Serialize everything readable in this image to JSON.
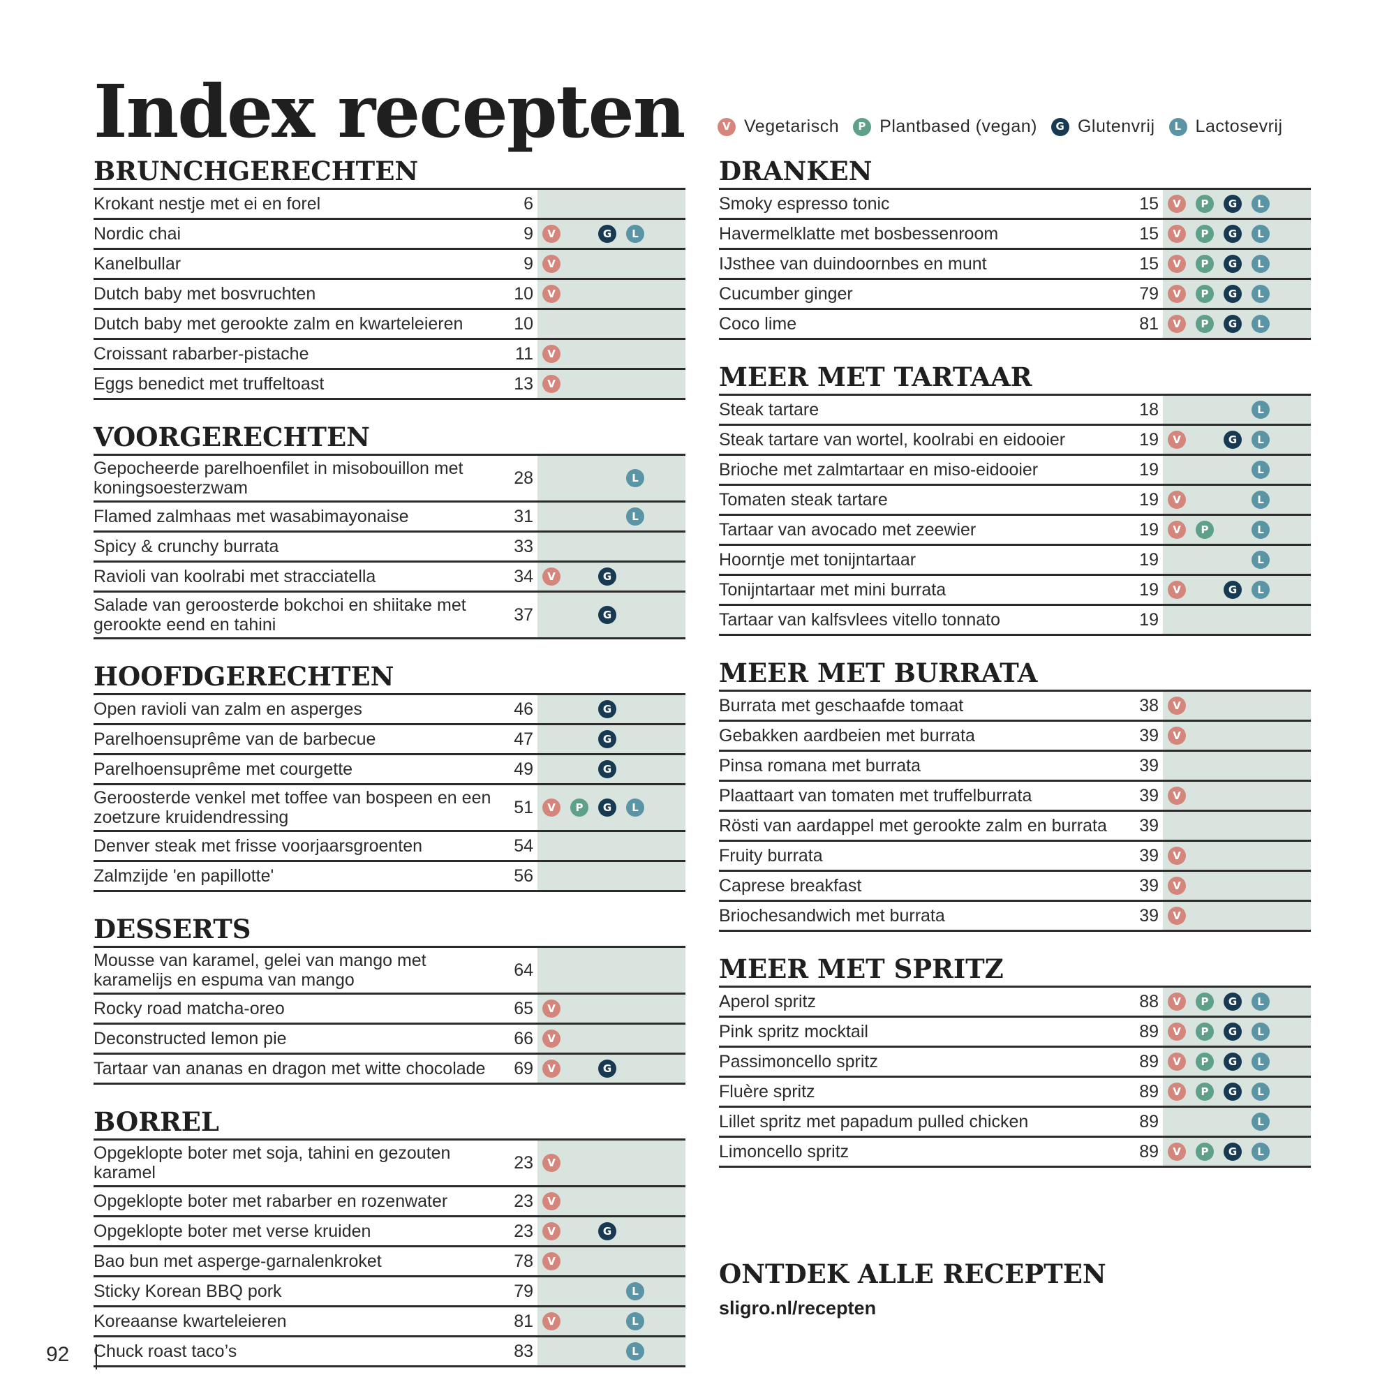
{
  "title": "Index recepten",
  "colors": {
    "V": "#d4867c",
    "P": "#5ea08a",
    "G": "#173a52",
    "L": "#5a94a5",
    "badge_bg": "#d8e4dd"
  },
  "legend": [
    {
      "code": "V",
      "label": "Vegetarisch"
    },
    {
      "code": "P",
      "label": "Plantbased (vegan)"
    },
    {
      "code": "G",
      "label": "Glutenvrij"
    },
    {
      "code": "L",
      "label": "Lactosevrij"
    }
  ],
  "sections_left": [
    {
      "title": "BRUNCHGERECHTEN",
      "items": [
        {
          "name": "Krokant nestje met ei en forel",
          "page": "6",
          "tags": []
        },
        {
          "name": "Nordic chai",
          "page": "9",
          "tags": [
            "V",
            "G",
            "L"
          ]
        },
        {
          "name": "Kanelbullar",
          "page": "9",
          "tags": [
            "V"
          ]
        },
        {
          "name": "Dutch baby met bosvruchten",
          "page": "10",
          "tags": [
            "V"
          ]
        },
        {
          "name": "Dutch baby met gerookte zalm en kwarteleieren",
          "page": "10",
          "tags": []
        },
        {
          "name": "Croissant rabarber-pistache",
          "page": "11",
          "tags": [
            "V"
          ]
        },
        {
          "name": "Eggs benedict met truffeltoast",
          "page": "13",
          "tags": [
            "V"
          ]
        }
      ]
    },
    {
      "title": "VOORGERECHTEN",
      "items": [
        {
          "name": "Gepocheerde parelhoenfilet in misobouillon met koningsoesterzwam",
          "page": "28",
          "tags": [
            "L"
          ]
        },
        {
          "name": "Flamed zalmhaas met wasabimayonaise",
          "page": "31",
          "tags": [
            "L"
          ]
        },
        {
          "name": "Spicy & crunchy burrata",
          "page": "33",
          "tags": []
        },
        {
          "name": "Ravioli van koolrabi met stracciatella",
          "page": "34",
          "tags": [
            "V",
            "G"
          ]
        },
        {
          "name": "Salade van geroosterde bokchoi en shiitake met gerookte eend en tahini",
          "page": "37",
          "tags": [
            "G"
          ]
        }
      ]
    },
    {
      "title": "HOOFDGERECHTEN",
      "items": [
        {
          "name": "Open ravioli van zalm en asperges",
          "page": "46",
          "tags": [
            "G"
          ]
        },
        {
          "name": "Parelhoensuprême van de barbecue",
          "page": "47",
          "tags": [
            "G"
          ]
        },
        {
          "name": "Parelhoensuprême met courgette",
          "page": "49",
          "tags": [
            "G"
          ]
        },
        {
          "name": "Geroosterde venkel met toffee van bospeen en een zoetzure kruidendressing",
          "page": "51",
          "tags": [
            "V",
            "P",
            "G",
            "L"
          ]
        },
        {
          "name": "Denver steak met frisse voorjaarsgroenten",
          "page": "54",
          "tags": []
        },
        {
          "name": "Zalmzijde 'en papillotte'",
          "page": "56",
          "tags": []
        }
      ]
    },
    {
      "title": "DESSERTS",
      "items": [
        {
          "name": "Mousse van karamel, gelei van mango met karamelijs en espuma van mango",
          "page": "64",
          "tags": []
        },
        {
          "name": "Rocky road matcha-oreo",
          "page": "65",
          "tags": [
            "V"
          ]
        },
        {
          "name": "Deconstructed lemon pie",
          "page": "66",
          "tags": [
            "V"
          ]
        },
        {
          "name": "Tartaar van ananas en dragon met witte chocolade",
          "page": "69",
          "tags": [
            "V",
            "G"
          ]
        }
      ]
    },
    {
      "title": "BORREL",
      "items": [
        {
          "name": "Opgeklopte boter met soja, tahini en gezouten karamel",
          "page": "23",
          "tags": [
            "V"
          ]
        },
        {
          "name": "Opgeklopte boter met rabarber en rozenwater",
          "page": "23",
          "tags": [
            "V"
          ]
        },
        {
          "name": "Opgeklopte boter met verse kruiden",
          "page": "23",
          "tags": [
            "V",
            "G"
          ]
        },
        {
          "name": "Bao bun met asperge-garnalenkroket",
          "page": "78",
          "tags": [
            "V"
          ]
        },
        {
          "name": "Sticky Korean BBQ pork",
          "page": "79",
          "tags": [
            "L"
          ]
        },
        {
          "name": "Koreaanse kwarteleieren",
          "page": "81",
          "tags": [
            "V",
            "L"
          ]
        },
        {
          "name": "Chuck roast taco’s",
          "page": "83",
          "tags": [
            "L"
          ]
        }
      ]
    }
  ],
  "sections_right": [
    {
      "title": "DRANKEN",
      "items": [
        {
          "name": "Smoky espresso tonic",
          "page": "15",
          "tags": [
            "V",
            "P",
            "G",
            "L"
          ]
        },
        {
          "name": "Havermelklatte met bosbessenroom",
          "page": "15",
          "tags": [
            "V",
            "P",
            "G",
            "L"
          ]
        },
        {
          "name": "IJsthee van duindoornbes en munt",
          "page": "15",
          "tags": [
            "V",
            "P",
            "G",
            "L"
          ]
        },
        {
          "name": "Cucumber ginger",
          "page": "79",
          "tags": [
            "V",
            "P",
            "G",
            "L"
          ]
        },
        {
          "name": "Coco lime",
          "page": "81",
          "tags": [
            "V",
            "P",
            "G",
            "L"
          ]
        }
      ]
    },
    {
      "title": "MEER MET TARTAAR",
      "items": [
        {
          "name": "Steak tartare",
          "page": "18",
          "tags": [
            "L"
          ]
        },
        {
          "name": "Steak tartare van wortel, koolrabi en eidooier",
          "page": "19",
          "tags": [
            "V",
            "G",
            "L"
          ]
        },
        {
          "name": "Brioche met zalmtartaar en miso-eidooier",
          "page": "19",
          "tags": [
            "L"
          ]
        },
        {
          "name": "Tomaten steak tartare",
          "page": "19",
          "tags": [
            "V",
            "L"
          ]
        },
        {
          "name": "Tartaar van avocado met zeewier",
          "page": "19",
          "tags": [
            "V",
            "P",
            "L"
          ]
        },
        {
          "name": "Hoorntje met tonijntartaar",
          "page": "19",
          "tags": [
            "L"
          ]
        },
        {
          "name": "Tonijntartaar met mini burrata",
          "page": "19",
          "tags": [
            "V",
            "G",
            "L"
          ]
        },
        {
          "name": "Tartaar van kalfsvlees vitello tonnato",
          "page": "19",
          "tags": []
        }
      ]
    },
    {
      "title": "MEER MET BURRATA",
      "items": [
        {
          "name": "Burrata met geschaafde tomaat",
          "page": "38",
          "tags": [
            "V"
          ]
        },
        {
          "name": "Gebakken aardbeien met burrata",
          "page": "39",
          "tags": [
            "V"
          ]
        },
        {
          "name": "Pinsa romana met burrata",
          "page": "39",
          "tags": []
        },
        {
          "name": "Plaattaart van tomaten met truffelburrata",
          "page": "39",
          "tags": [
            "V"
          ]
        },
        {
          "name": "Rösti van aardappel met gerookte zalm en burrata",
          "page": "39",
          "tags": []
        },
        {
          "name": "Fruity burrata",
          "page": "39",
          "tags": [
            "V"
          ]
        },
        {
          "name": "Caprese breakfast",
          "page": "39",
          "tags": [
            "V"
          ]
        },
        {
          "name": "Briochesandwich met burrata",
          "page": "39",
          "tags": [
            "V"
          ]
        }
      ]
    },
    {
      "title": "MEER MET SPRITZ",
      "items": [
        {
          "name": "Aperol spritz",
          "page": "88",
          "tags": [
            "V",
            "P",
            "G",
            "L"
          ]
        },
        {
          "name": "Pink spritz mocktail",
          "page": "89",
          "tags": [
            "V",
            "P",
            "G",
            "L"
          ]
        },
        {
          "name": "Passimoncello spritz",
          "page": "89",
          "tags": [
            "V",
            "P",
            "G",
            "L"
          ]
        },
        {
          "name": "Fluère spritz",
          "page": "89",
          "tags": [
            "V",
            "P",
            "G",
            "L"
          ]
        },
        {
          "name": "Lillet spritz met papadum pulled chicken",
          "page": "89",
          "tags": [
            "L"
          ]
        },
        {
          "name": "Limoncello spritz",
          "page": "89",
          "tags": [
            "V",
            "P",
            "G",
            "L"
          ]
        }
      ]
    }
  ],
  "cta": {
    "title": "ONTDEK ALLE RECEPTEN",
    "url": "sligro.nl/recepten"
  },
  "page_number": "92"
}
